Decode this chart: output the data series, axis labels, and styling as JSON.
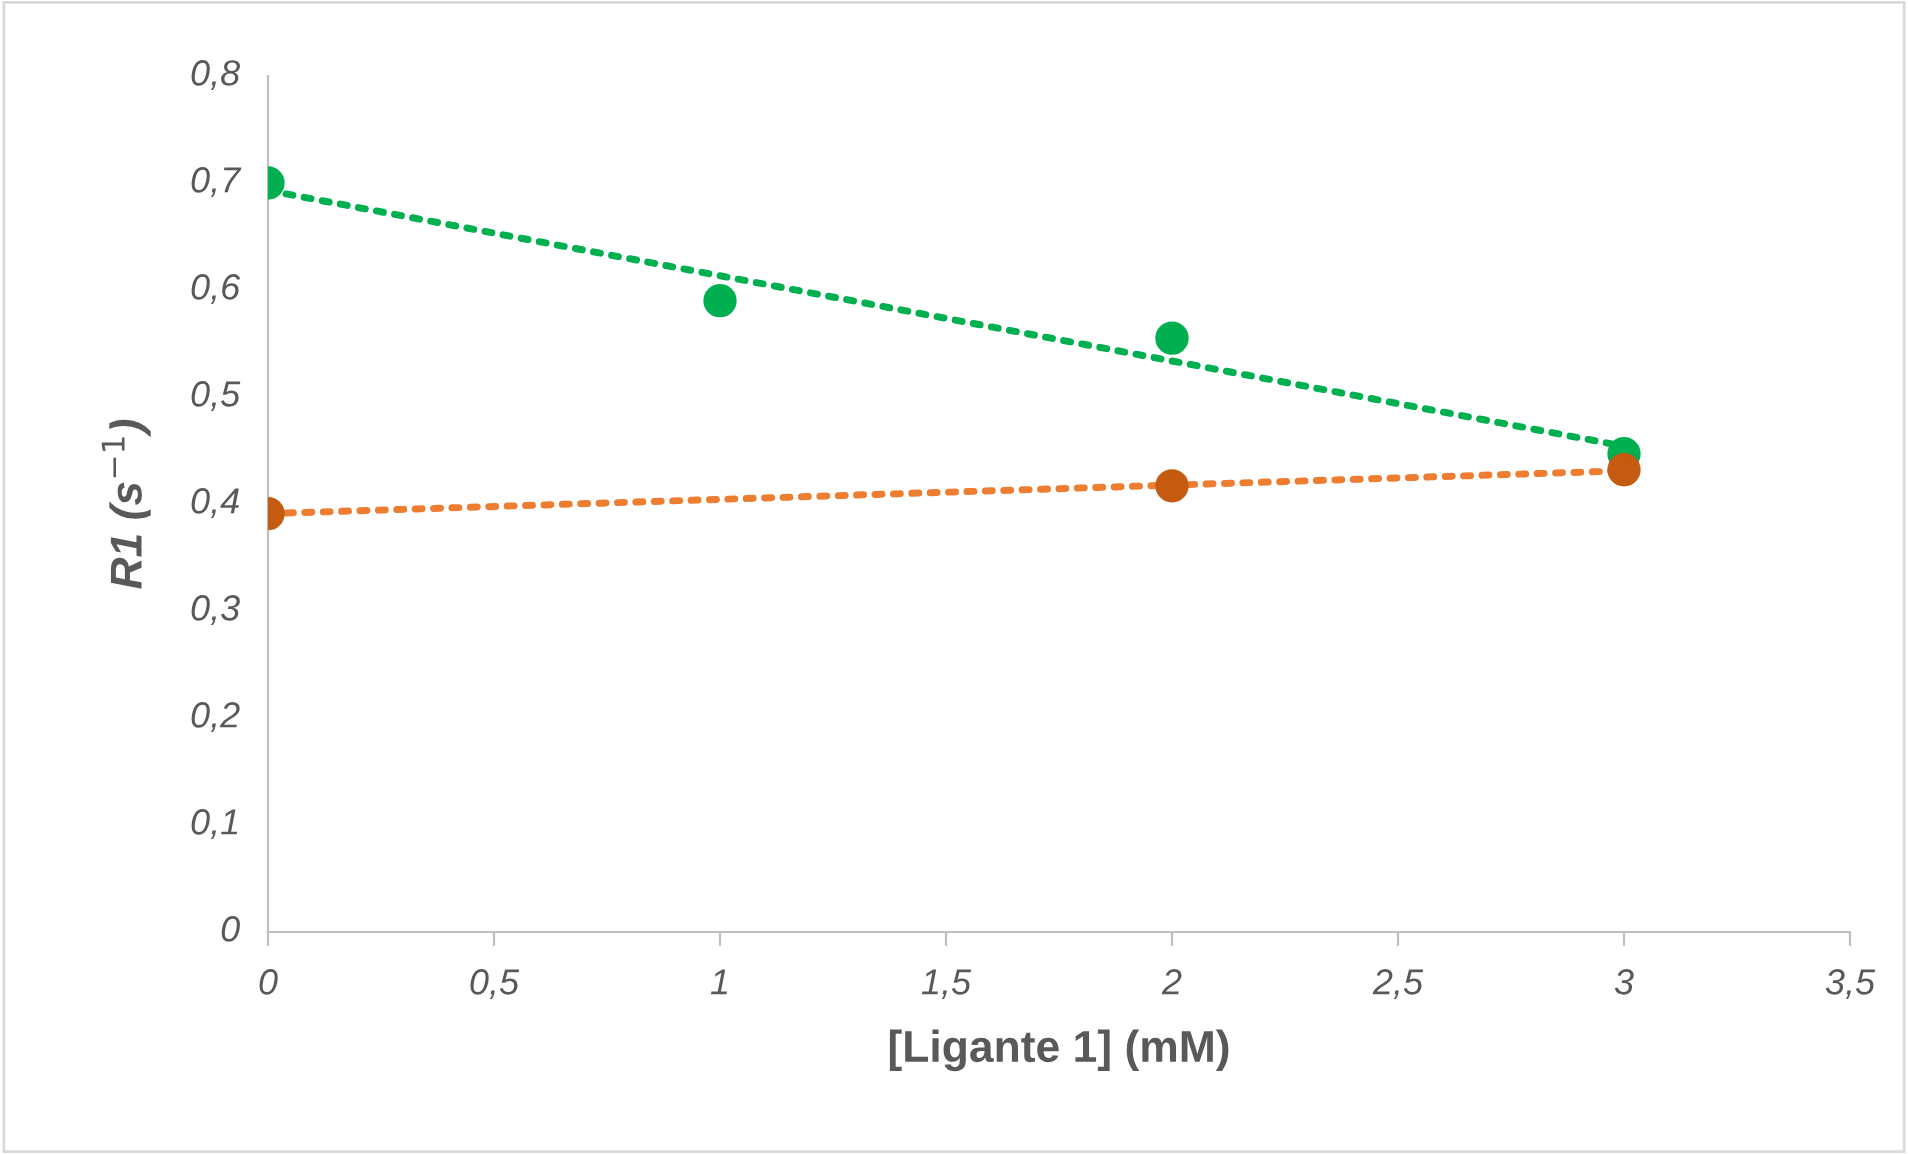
{
  "chart_data": {
    "type": "scatter",
    "xlabel": "[Ligante 1] (mM)",
    "ylabel": "R1 (s$^{−1}$)",
    "x": [
      0,
      1,
      2,
      3
    ],
    "series": [
      {
        "type": "scatter",
        "color": "#00b050",
        "values": [
          0.7,
          0.59,
          0.555,
          0.447
        ]
      },
      {
        "type": "scatter",
        "color": "#c55a11",
        "x": [
          0,
          2,
          3
        ],
        "values": [
          0.391,
          0.417,
          0.432
        ]
      },
      {
        "type": "line",
        "color": "#00b050",
        "x": [
          0,
          3
        ],
        "values": [
          0.693,
          0.454
        ],
        "line_style": "dotted",
        "marker": "none"
      },
      {
        "type": "line",
        "color": "#ed7d31",
        "x": [
          0,
          3
        ],
        "values": [
          0.391,
          0.431
        ],
        "line_style": "dotted",
        "marker": "none"
      }
    ],
    "marker": "circle",
    "grid": false,
    "legend": false,
    "xlim": [
      0,
      3.5
    ],
    "xticks": [
      0,
      {
        "value": 0.5,
        "label": "0,5"
      },
      1,
      {
        "value": 1.5,
        "label": "1,5"
      },
      2,
      {
        "value": 2.5,
        "label": "2,5"
      },
      3,
      {
        "value": 3.5,
        "label": "3,5"
      }
    ],
    "ylim": [
      0,
      0.8
    ],
    "yticks": [
      0,
      {
        "value": 0.1,
        "label": "0,1"
      },
      {
        "value": 0.2,
        "label": "0,2"
      },
      {
        "value": 0.3,
        "label": "0,3"
      },
      {
        "value": 0.4,
        "label": "0,4"
      },
      {
        "value": 0.5,
        "label": "0,5"
      },
      {
        "value": 0.6,
        "label": "0,6"
      },
      {
        "value": 0.7,
        "label": "0,7"
      },
      {
        "value": 0.8,
        "label": "0,8"
      }
    ]
  }
}
